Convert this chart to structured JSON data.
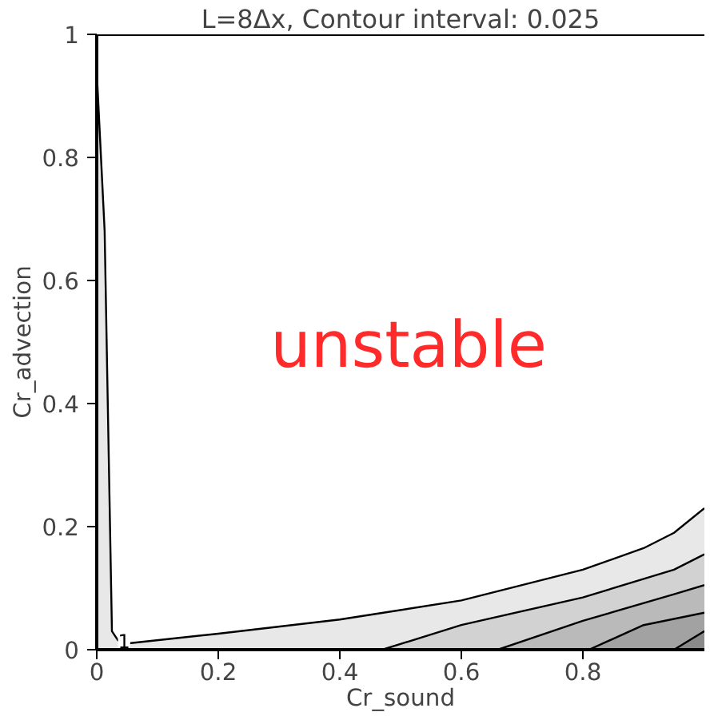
{
  "chart_data": {
    "type": "area",
    "title": "L=8Δx, Contour interval: 0.025",
    "xlabel": "Cr_sound",
    "ylabel": "Cr_advection",
    "xlim": [
      0,
      1
    ],
    "ylim": [
      0,
      1
    ],
    "xticks": [
      0,
      0.2,
      0.4,
      0.6,
      0.8
    ],
    "yticks": [
      0,
      0.2,
      0.4,
      0.6,
      0.8,
      1
    ],
    "grid": false,
    "series": [
      {
        "color": "#e8e8e8",
        "x": [
          0,
          0.013,
          0.02,
          0.025,
          0.035,
          0.05,
          0.2,
          0.4,
          0.6,
          0.8,
          0.9,
          0.95,
          1.0
        ],
        "values": [
          0.94,
          0.68,
          0.3,
          0.03,
          0.015,
          0.01,
          0.026,
          0.049,
          0.08,
          0.13,
          0.165,
          0.19,
          0.23
        ]
      },
      {
        "color": "#d2d2d2",
        "x": [
          0.47,
          0.6,
          0.8,
          0.95,
          1.0
        ],
        "values": [
          0,
          0.04,
          0.085,
          0.13,
          0.155
        ]
      },
      {
        "color": "#bababa",
        "x": [
          0.66,
          0.8,
          0.95,
          1.0
        ],
        "values": [
          0,
          0.047,
          0.09,
          0.105
        ]
      },
      {
        "color": "#a2a2a2",
        "x": [
          0.81,
          0.9,
          1.0
        ],
        "values": [
          0,
          0.04,
          0.06
        ]
      },
      {
        "color": "#8a8a8a",
        "x": [
          0.95,
          1.0
        ],
        "values": [
          0,
          0.03
        ]
      }
    ],
    "annotations": [
      "unstable",
      {
        "text": "1",
        "x": 0.045,
        "y": 0.014
      }
    ]
  }
}
